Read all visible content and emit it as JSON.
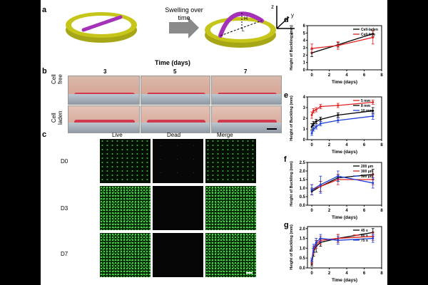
{
  "panel_labels": {
    "a": "a",
    "b": "b",
    "c": "c",
    "d": "d",
    "e": "e",
    "f": "f",
    "g": "g"
  },
  "panel_a": {
    "arrow_text_line1": "Swelling over",
    "arrow_text_line2": "time",
    "annotation_h": "H",
    "annotation_l": "L",
    "axis_z": "z",
    "axis_y": "y",
    "axis_x": "x",
    "colors": {
      "ring": "#c6c61a",
      "strip": "#a531b8"
    }
  },
  "panel_b": {
    "time_header": "Time (days)",
    "times": [
      "3",
      "5",
      "7"
    ],
    "row_labels": [
      [
        "Cell",
        "free"
      ],
      [
        "Cell",
        "laden"
      ]
    ]
  },
  "panel_c": {
    "columns": [
      "Live",
      "Dead",
      "Merge"
    ],
    "rows": [
      "D0",
      "D3",
      "D7"
    ]
  },
  "chart_data": [
    {
      "panel": "d",
      "type": "line",
      "ylabel": "Height of Buckling (mm)",
      "xlabel": "Time (days)",
      "xticks": [
        "0",
        "2",
        "4",
        "6",
        "8"
      ],
      "yticks": [
        "0",
        "1",
        "2",
        "3",
        "4",
        "5",
        "6"
      ],
      "xlim": [
        -0.5,
        8
      ],
      "ylim": [
        0,
        6
      ],
      "legend_position": "top-right",
      "series": [
        {
          "name": "Cell-laden",
          "color": "#000000",
          "x": [
            0,
            3,
            7
          ],
          "y": [
            2.3,
            3.4,
            4.9
          ],
          "err": [
            0.5,
            0.3,
            0.4
          ]
        },
        {
          "name": "Cell-free",
          "color": "#e02020",
          "x": [
            0,
            3,
            7
          ],
          "y": [
            2.9,
            3.3,
            4.4
          ],
          "err": [
            0.6,
            0.5,
            0.9
          ]
        }
      ]
    },
    {
      "panel": "e",
      "type": "line",
      "ylabel": "Height of Buckling (mm)",
      "xlabel": "Time (days)",
      "xticks": [
        "0",
        "2",
        "4",
        "6",
        "8"
      ],
      "yticks": [
        "0",
        "1",
        "2",
        "3",
        "4"
      ],
      "xlim": [
        -0.5,
        8
      ],
      "ylim": [
        0,
        4
      ],
      "legend_position": "top-right",
      "series": [
        {
          "name": "5 mm",
          "color": "#e02020",
          "x": [
            0,
            0.2,
            0.5,
            1,
            3,
            7
          ],
          "y": [
            2.3,
            2.7,
            2.8,
            3.1,
            3.2,
            3.5
          ],
          "err": [
            0.3,
            0.2,
            0.2,
            0.2,
            0.2,
            0.2
          ]
        },
        {
          "name": "8 mm",
          "color": "#000000",
          "x": [
            0,
            0.2,
            0.5,
            1,
            3,
            7
          ],
          "y": [
            1.2,
            1.5,
            1.7,
            1.9,
            2.3,
            2.7
          ],
          "err": [
            0.3,
            0.2,
            0.2,
            0.2,
            0.2,
            0.3
          ]
        },
        {
          "name": "10 mm",
          "color": "#1f3fd6",
          "x": [
            0,
            0.2,
            0.5,
            1,
            3,
            7
          ],
          "y": [
            0.6,
            1.0,
            1.2,
            1.5,
            1.8,
            2.2
          ],
          "err": [
            0.2,
            0.2,
            0.2,
            0.2,
            0.2,
            0.3
          ]
        }
      ]
    },
    {
      "panel": "f",
      "type": "line",
      "ylabel": "Height of Buckling (mm)",
      "xlabel": "Time (days)",
      "xticks": [
        "0",
        "2",
        "4",
        "6",
        "8"
      ],
      "yticks": [
        "0.0",
        "0.5",
        "1.0",
        "1.5",
        "2.0",
        "2.5"
      ],
      "xlim": [
        -0.5,
        8
      ],
      "ylim": [
        0,
        2.5
      ],
      "legend_position": "top-right",
      "series": [
        {
          "name": "200 μm",
          "color": "#000000",
          "x": [
            0,
            1,
            3,
            7
          ],
          "y": [
            0.8,
            1.1,
            1.6,
            1.8
          ],
          "err": [
            0.2,
            0.3,
            0.2,
            0.3
          ]
        },
        {
          "name": "300 μm",
          "color": "#e02020",
          "x": [
            0,
            1,
            3,
            7
          ],
          "y": [
            0.9,
            1.1,
            1.5,
            1.5
          ],
          "err": [
            0.3,
            0.3,
            0.3,
            0.3
          ]
        },
        {
          "name": "500 μm",
          "color": "#1f3fd6",
          "x": [
            0,
            1,
            3,
            7
          ],
          "y": [
            0.9,
            1.2,
            1.7,
            1.3
          ],
          "err": [
            0.3,
            0.5,
            0.3,
            0.3
          ]
        }
      ]
    },
    {
      "panel": "g",
      "type": "line",
      "ylabel": "Height of Buckling (mm)",
      "xlabel": "Time (days)",
      "xticks": [
        "0",
        "2",
        "4",
        "6",
        "8"
      ],
      "yticks": [
        "0.0",
        "0.5",
        "1.0",
        "1.5",
        "2.0"
      ],
      "xlim": [
        -0.5,
        8
      ],
      "ylim": [
        0,
        2.1
      ],
      "legend_position": "top-right",
      "series": [
        {
          "name": "45 s",
          "color": "#000000",
          "x": [
            0,
            0.2,
            0.5,
            1,
            3,
            7
          ],
          "y": [
            0.2,
            0.8,
            1.1,
            1.3,
            1.5,
            1.8
          ],
          "err": [
            0.1,
            0.2,
            0.3,
            0.2,
            0.2,
            0.2
          ]
        },
        {
          "name": "60 s",
          "color": "#e02020",
          "x": [
            0,
            0.2,
            0.5,
            1,
            3,
            7
          ],
          "y": [
            0.3,
            0.9,
            1.2,
            1.4,
            1.5,
            1.6
          ],
          "err": [
            0.1,
            0.2,
            0.2,
            0.2,
            0.2,
            0.2
          ]
        },
        {
          "name": "75 s",
          "color": "#1f3fd6",
          "x": [
            0,
            0.2,
            0.5,
            1,
            3,
            7
          ],
          "y": [
            0.4,
            1.0,
            1.3,
            1.5,
            1.4,
            1.5
          ],
          "err": [
            0.1,
            0.2,
            0.2,
            0.2,
            0.2,
            0.2
          ]
        }
      ]
    }
  ]
}
